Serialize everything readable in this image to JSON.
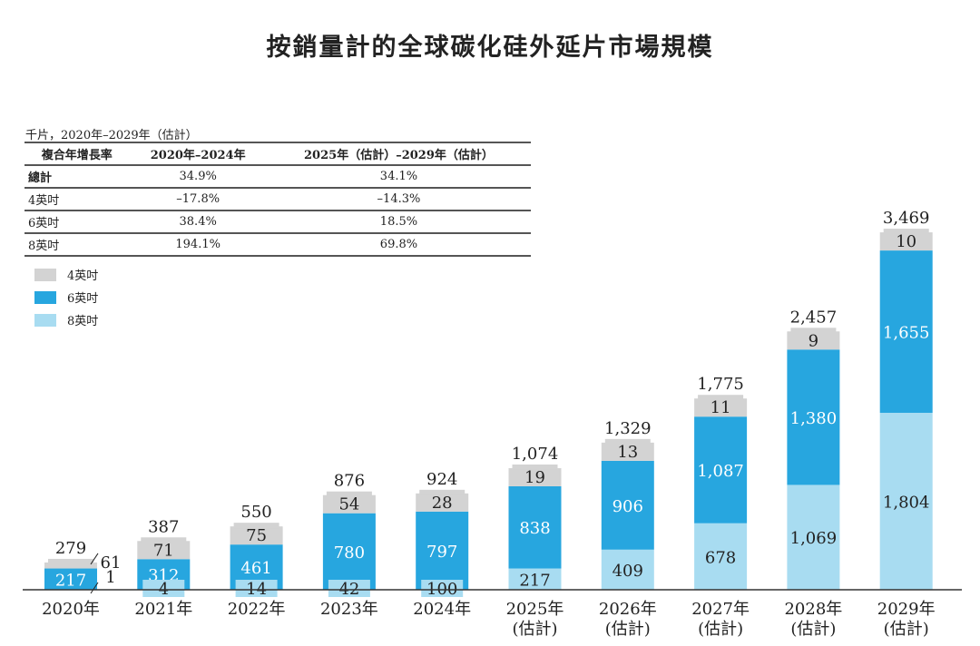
{
  "title": "按銷量計的全球碳化硅外延片市場規模",
  "unit_note": "千片，2020年–2029年（估計）",
  "cagr_table": {
    "headers": [
      "複合年增長率",
      "2020年–2024年",
      "2025年（估計）–2029年（估計）"
    ],
    "rows": [
      [
        "總計",
        "34.9%",
        "34.1%"
      ],
      [
        "4英吋",
        "–17.8%",
        "–14.3%"
      ],
      [
        "6英吋",
        "38.4%",
        "18.5%"
      ],
      [
        "8英吋",
        "194.1%",
        "69.8%"
      ]
    ]
  },
  "chart_data": {
    "type": "bar",
    "stacked": true,
    "title": "按銷量計的全球碳化硅外延片市場規模",
    "unit": "千片",
    "categories": [
      "2020年",
      "2021年",
      "2022年",
      "2023年",
      "2024年",
      "2025年",
      "2026年",
      "2027年",
      "2028年",
      "2029年"
    ],
    "category_notes": [
      "",
      "",
      "",
      "",
      "",
      "(估計)",
      "(估計)",
      "(估計)",
      "(估計)",
      "(估計)"
    ],
    "series": [
      {
        "name": "8英吋",
        "color": "#a8dcf1",
        "values": [
          1,
          4,
          14,
          42,
          100,
          217,
          409,
          678,
          1069,
          1804
        ]
      },
      {
        "name": "6英吋",
        "color": "#27a6df",
        "values": [
          217,
          312,
          461,
          780,
          797,
          838,
          906,
          1087,
          1380,
          1655
        ]
      },
      {
        "name": "4英吋",
        "color": "#d3d3d3",
        "values": [
          61,
          71,
          75,
          54,
          28,
          19,
          13,
          11,
          9,
          10
        ]
      }
    ],
    "totals": [
      "279",
      "387",
      "550",
      "876",
      "924",
      "1,074",
      "1,329",
      "1,775",
      "2,457",
      "3,469"
    ],
    "value_labels": [
      [
        "1",
        "4",
        "14",
        "42",
        "100",
        "217",
        "409",
        "678",
        "1,069",
        "1,804"
      ],
      [
        "217",
        "312",
        "461",
        "780",
        "797",
        "838",
        "906",
        "1,087",
        "1,380",
        "1,655"
      ],
      [
        "61",
        "71",
        "75",
        "54",
        "28",
        "19",
        "13",
        "11",
        "9",
        "10"
      ]
    ],
    "legend_position": "top-left",
    "grid": false
  }
}
